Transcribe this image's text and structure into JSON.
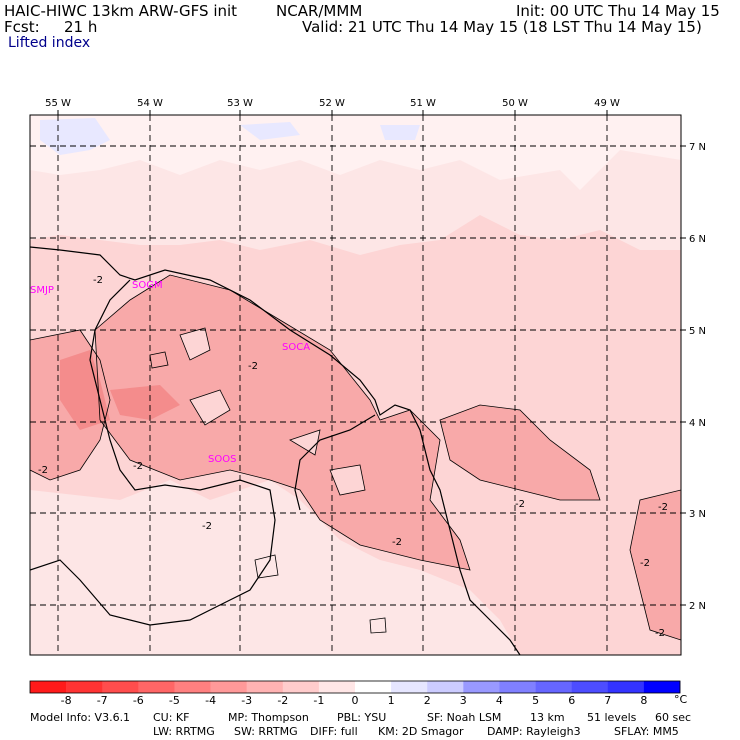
{
  "header": {
    "model": "HAIC-HIWC 13km ARW-GFS init",
    "org": "NCAR/MMM",
    "init": "Init: 00 UTC Thu 14 May 15",
    "fcst_label": "Fcst:",
    "fcst_value": "21 h",
    "valid": "Valid: 21 UTC Thu 14 May 15 (18 LST Thu 14 May 15)",
    "variable": "Lifted index"
  },
  "map": {
    "lon_labels": [
      "55 W",
      "54 W",
      "53 W",
      "52 W",
      "51 W",
      "50 W",
      "49 W"
    ],
    "lat_labels": [
      "7 N",
      "6 N",
      "5 N",
      "4 N",
      "3 N",
      "2 N"
    ],
    "stations": [
      {
        "name": "SMJP",
        "color": "#ff00ff"
      },
      {
        "name": "SOGM",
        "color": "#ff00ff"
      },
      {
        "name": "SOCA",
        "color": "#ff00ff"
      },
      {
        "name": "SOOS",
        "color": "#ff00ff"
      }
    ],
    "contour_labels": [
      "-2",
      "-2",
      "-2",
      "-2",
      "-2",
      "-2",
      "-2",
      "-2",
      "-2",
      "-2"
    ],
    "colors": {
      "base": "#fdd5d5",
      "light": "#fde6e6",
      "verylight": "#fff1f1",
      "med": "#f8a9a9",
      "darker": "#f48c8c",
      "bluish": "#e8e8ff"
    }
  },
  "colorbar": {
    "ticks": [
      "-8",
      "-7",
      "-6",
      "-5",
      "-4",
      "-3",
      "-2",
      "-1",
      "0",
      "1",
      "2",
      "3",
      "4",
      "5",
      "6",
      "7",
      "8"
    ],
    "unit": "°C",
    "colors": [
      "#ff1a1a",
      "#ff3333",
      "#ff4d4d",
      "#ff6666",
      "#ff8080",
      "#ff9999",
      "#ffb3b3",
      "#ffcccc",
      "#ffe6e6",
      "#ffffff",
      "#e6e6ff",
      "#ccccff",
      "#9999ff",
      "#8080ff",
      "#6666ff",
      "#4d4dff",
      "#3333ff",
      "#0000ff"
    ]
  },
  "footer": {
    "line1": [
      "Model Info: V3.6.1",
      "CU: KF",
      "MP: Thompson",
      "PBL: YSU",
      "SF: Noah LSM",
      "13 km",
      "51 levels",
      "60 sec"
    ],
    "line2": [
      "LW: RRTMG",
      "SW: RRTMG",
      "DIFF: full",
      "KM: 2D Smagor",
      "DAMP: Rayleigh3",
      "SFLAY: MM5"
    ]
  }
}
